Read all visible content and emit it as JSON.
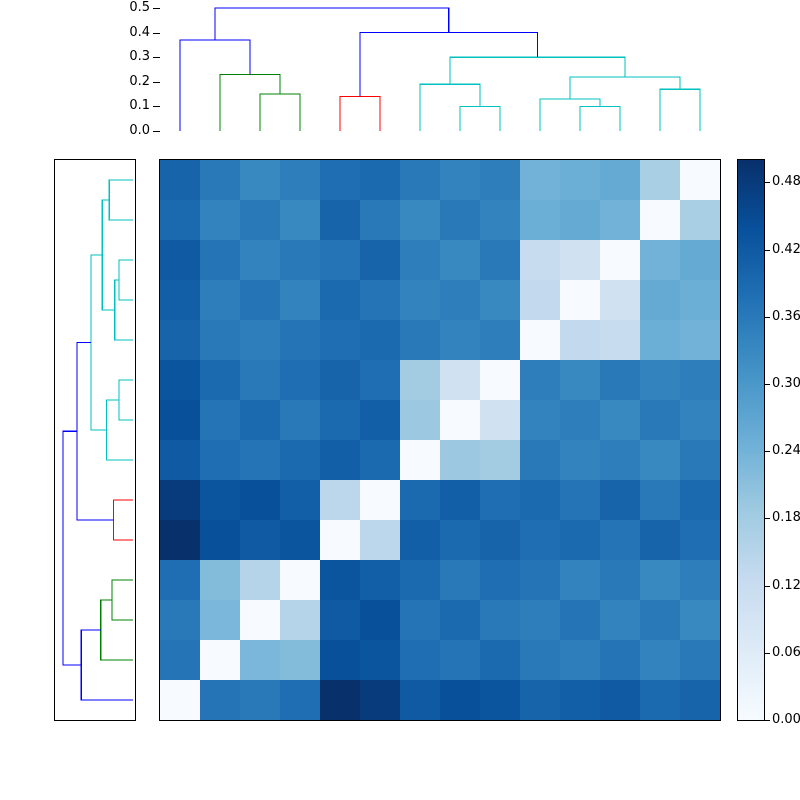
{
  "figure": {
    "kind": "hierarchical-clustering-heatmap",
    "background_color": "#ffffff"
  },
  "chart_data": {
    "type": "heatmap",
    "title": "",
    "n_rows": 14,
    "n_cols": 14,
    "vmin": 0.0,
    "vmax": 0.5,
    "grid": false,
    "matrix_rows_top_to_bottom": [
      [
        0.4,
        0.36,
        0.33,
        0.35,
        0.38,
        0.39,
        0.36,
        0.34,
        0.35,
        0.24,
        0.25,
        0.26,
        0.17,
        0.0
      ],
      [
        0.39,
        0.34,
        0.36,
        0.33,
        0.4,
        0.36,
        0.33,
        0.36,
        0.34,
        0.25,
        0.26,
        0.24,
        0.0,
        0.17
      ],
      [
        0.42,
        0.37,
        0.34,
        0.36,
        0.37,
        0.4,
        0.35,
        0.33,
        0.36,
        0.12,
        0.1,
        0.0,
        0.24,
        0.26
      ],
      [
        0.41,
        0.35,
        0.37,
        0.34,
        0.39,
        0.37,
        0.34,
        0.35,
        0.33,
        0.13,
        0.0,
        0.1,
        0.26,
        0.25
      ],
      [
        0.4,
        0.36,
        0.35,
        0.37,
        0.38,
        0.39,
        0.36,
        0.34,
        0.35,
        0.0,
        0.13,
        0.12,
        0.25,
        0.24
      ],
      [
        0.43,
        0.39,
        0.36,
        0.38,
        0.4,
        0.38,
        0.18,
        0.1,
        0.0,
        0.35,
        0.33,
        0.36,
        0.34,
        0.35
      ],
      [
        0.44,
        0.37,
        0.39,
        0.36,
        0.39,
        0.41,
        0.19,
        0.0,
        0.1,
        0.34,
        0.35,
        0.33,
        0.36,
        0.34
      ],
      [
        0.42,
        0.38,
        0.37,
        0.39,
        0.41,
        0.39,
        0.0,
        0.19,
        0.18,
        0.36,
        0.34,
        0.35,
        0.33,
        0.36
      ],
      [
        0.48,
        0.43,
        0.44,
        0.41,
        0.14,
        0.0,
        0.39,
        0.41,
        0.38,
        0.39,
        0.37,
        0.4,
        0.36,
        0.39
      ],
      [
        0.5,
        0.44,
        0.42,
        0.43,
        0.0,
        0.14,
        0.41,
        0.39,
        0.4,
        0.38,
        0.39,
        0.37,
        0.4,
        0.38
      ],
      [
        0.38,
        0.22,
        0.15,
        0.0,
        0.43,
        0.41,
        0.39,
        0.36,
        0.38,
        0.37,
        0.34,
        0.36,
        0.33,
        0.35
      ],
      [
        0.36,
        0.23,
        0.0,
        0.15,
        0.42,
        0.44,
        0.37,
        0.39,
        0.36,
        0.35,
        0.37,
        0.34,
        0.36,
        0.33
      ],
      [
        0.37,
        0.0,
        0.23,
        0.22,
        0.44,
        0.43,
        0.38,
        0.37,
        0.39,
        0.36,
        0.35,
        0.37,
        0.34,
        0.36
      ],
      [
        0.0,
        0.37,
        0.36,
        0.38,
        0.5,
        0.48,
        0.42,
        0.44,
        0.43,
        0.4,
        0.41,
        0.42,
        0.39,
        0.4
      ]
    ],
    "colormap_name": "Blues",
    "colormap_stops": [
      [
        0.0,
        [
          247,
          251,
          255
        ]
      ],
      [
        0.125,
        [
          222,
          235,
          247
        ]
      ],
      [
        0.25,
        [
          198,
          219,
          239
        ]
      ],
      [
        0.375,
        [
          158,
          202,
          225
        ]
      ],
      [
        0.5,
        [
          107,
          174,
          214
        ]
      ],
      [
        0.625,
        [
          66,
          146,
          198
        ]
      ],
      [
        0.75,
        [
          33,
          113,
          181
        ]
      ],
      [
        0.875,
        [
          8,
          81,
          156
        ]
      ],
      [
        1.0,
        [
          8,
          48,
          107
        ]
      ]
    ],
    "colorbar": {
      "tick_labels": [
        "0.00",
        "0.06",
        "0.12",
        "0.18",
        "0.24",
        "0.30",
        "0.36",
        "0.42",
        "0.48"
      ],
      "tick_values": [
        0.0,
        0.06,
        0.12,
        0.18,
        0.24,
        0.3,
        0.36,
        0.42,
        0.48
      ],
      "min": 0.0,
      "max": 0.5
    },
    "top_dendrogram": {
      "axis_tick_labels": [
        "0.0",
        "0.1",
        "0.2",
        "0.3",
        "0.4",
        "0.5"
      ],
      "axis_tick_values": [
        0.0,
        0.1,
        0.2,
        0.3,
        0.4,
        0.5
      ],
      "axis_max": 0.5,
      "link_colors": {
        "blue": "#0000ff",
        "green": "#008000",
        "red": "#ff0000",
        "cyan": "#00bfbf"
      },
      "merges": [
        {
          "a": 7.5,
          "ah": 0.0,
          "b": 8.5,
          "bh": 0.0,
          "h": 0.1,
          "c": "cyan"
        },
        {
          "a": 6.5,
          "ah": 0.0,
          "b": 8.0,
          "bh": 0.1,
          "h": 0.19,
          "c": "cyan"
        },
        {
          "a": 10.5,
          "ah": 0.0,
          "b": 11.5,
          "bh": 0.0,
          "h": 0.1,
          "c": "cyan"
        },
        {
          "a": 9.5,
          "ah": 0.0,
          "b": 11.0,
          "bh": 0.1,
          "h": 0.13,
          "c": "cyan"
        },
        {
          "a": 12.5,
          "ah": 0.0,
          "b": 13.5,
          "bh": 0.0,
          "h": 0.17,
          "c": "cyan"
        },
        {
          "a": 10.25,
          "ah": 0.13,
          "b": 13.0,
          "bh": 0.17,
          "h": 0.22,
          "c": "cyan"
        },
        {
          "a": 7.25,
          "ah": 0.19,
          "b": 11.625,
          "bh": 0.22,
          "h": 0.3,
          "c": "cyan"
        },
        {
          "a": 4.5,
          "ah": 0.0,
          "b": 5.5,
          "bh": 0.0,
          "h": 0.14,
          "c": "red"
        },
        {
          "a": 2.5,
          "ah": 0.0,
          "b": 3.5,
          "bh": 0.0,
          "h": 0.15,
          "c": "green"
        },
        {
          "a": 1.5,
          "ah": 0.0,
          "b": 3.0,
          "bh": 0.15,
          "h": 0.23,
          "c": "green"
        },
        {
          "a": 0.5,
          "ah": 0.0,
          "b": 2.25,
          "bh": 0.23,
          "h": 0.37,
          "c": "blue"
        },
        {
          "a": 5.0,
          "ah": 0.14,
          "b": 9.4375,
          "bh": 0.3,
          "h": 0.4,
          "c": "blue"
        },
        {
          "a": 1.375,
          "ah": 0.37,
          "b": 7.21875,
          "bh": 0.4,
          "h": 0.5,
          "c": "blue"
        }
      ]
    },
    "left_dendrogram": {
      "leaf_order": "reversed-top",
      "axis_max": 0.5
    }
  }
}
